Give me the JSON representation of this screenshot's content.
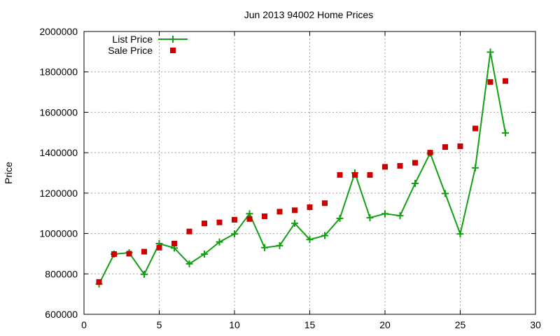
{
  "chart_data": {
    "type": "line",
    "title": "Jun 2013 94002 Home Prices",
    "xlabel": "",
    "ylabel": "Price",
    "xlim": [
      0,
      30
    ],
    "ylim": [
      600000,
      2000000
    ],
    "xticks": [
      0,
      5,
      10,
      15,
      20,
      25,
      30
    ],
    "yticks": [
      600000,
      800000,
      1000000,
      1200000,
      1400000,
      1600000,
      1800000,
      2000000
    ],
    "grid": true,
    "legend_position": "top-left",
    "series": [
      {
        "name": "List Price",
        "style": "line+cross",
        "color": "#11a011",
        "points": [
          [
            1,
            750000
          ],
          [
            2,
            898000
          ],
          [
            3,
            905000
          ],
          [
            4,
            798000
          ],
          [
            5,
            950000
          ],
          [
            6,
            928000
          ],
          [
            7,
            850000
          ],
          [
            8,
            898000
          ],
          [
            9,
            958000
          ],
          [
            10,
            998000
          ],
          [
            11,
            1098000
          ],
          [
            12,
            930000
          ],
          [
            13,
            940000
          ],
          [
            14,
            1050000
          ],
          [
            15,
            970000
          ],
          [
            16,
            990000
          ],
          [
            17,
            1075000
          ],
          [
            18,
            1300000
          ],
          [
            19,
            1078000
          ],
          [
            20,
            1098000
          ],
          [
            21,
            1088000
          ],
          [
            22,
            1248000
          ],
          [
            23,
            1398000
          ],
          [
            24,
            1198000
          ],
          [
            25,
            998000
          ],
          [
            26,
            1325000
          ],
          [
            27,
            1898000
          ],
          [
            28,
            1498000
          ]
        ]
      },
      {
        "name": "Sale Price",
        "style": "square",
        "color": "#cc0000",
        "points": [
          [
            1,
            760000
          ],
          [
            2,
            898000
          ],
          [
            3,
            900000
          ],
          [
            4,
            910000
          ],
          [
            5,
            930000
          ],
          [
            6,
            950000
          ],
          [
            7,
            1010000
          ],
          [
            8,
            1050000
          ],
          [
            9,
            1055000
          ],
          [
            10,
            1068000
          ],
          [
            11,
            1072000
          ],
          [
            12,
            1085000
          ],
          [
            13,
            1108000
          ],
          [
            14,
            1115000
          ],
          [
            15,
            1130000
          ],
          [
            16,
            1150000
          ],
          [
            17,
            1290000
          ],
          [
            18,
            1290000
          ],
          [
            19,
            1290000
          ],
          [
            20,
            1330000
          ],
          [
            21,
            1335000
          ],
          [
            22,
            1350000
          ],
          [
            23,
            1400000
          ],
          [
            24,
            1428000
          ],
          [
            25,
            1432000
          ],
          [
            26,
            1520000
          ],
          [
            27,
            1750000
          ],
          [
            28,
            1755000
          ]
        ]
      }
    ]
  }
}
